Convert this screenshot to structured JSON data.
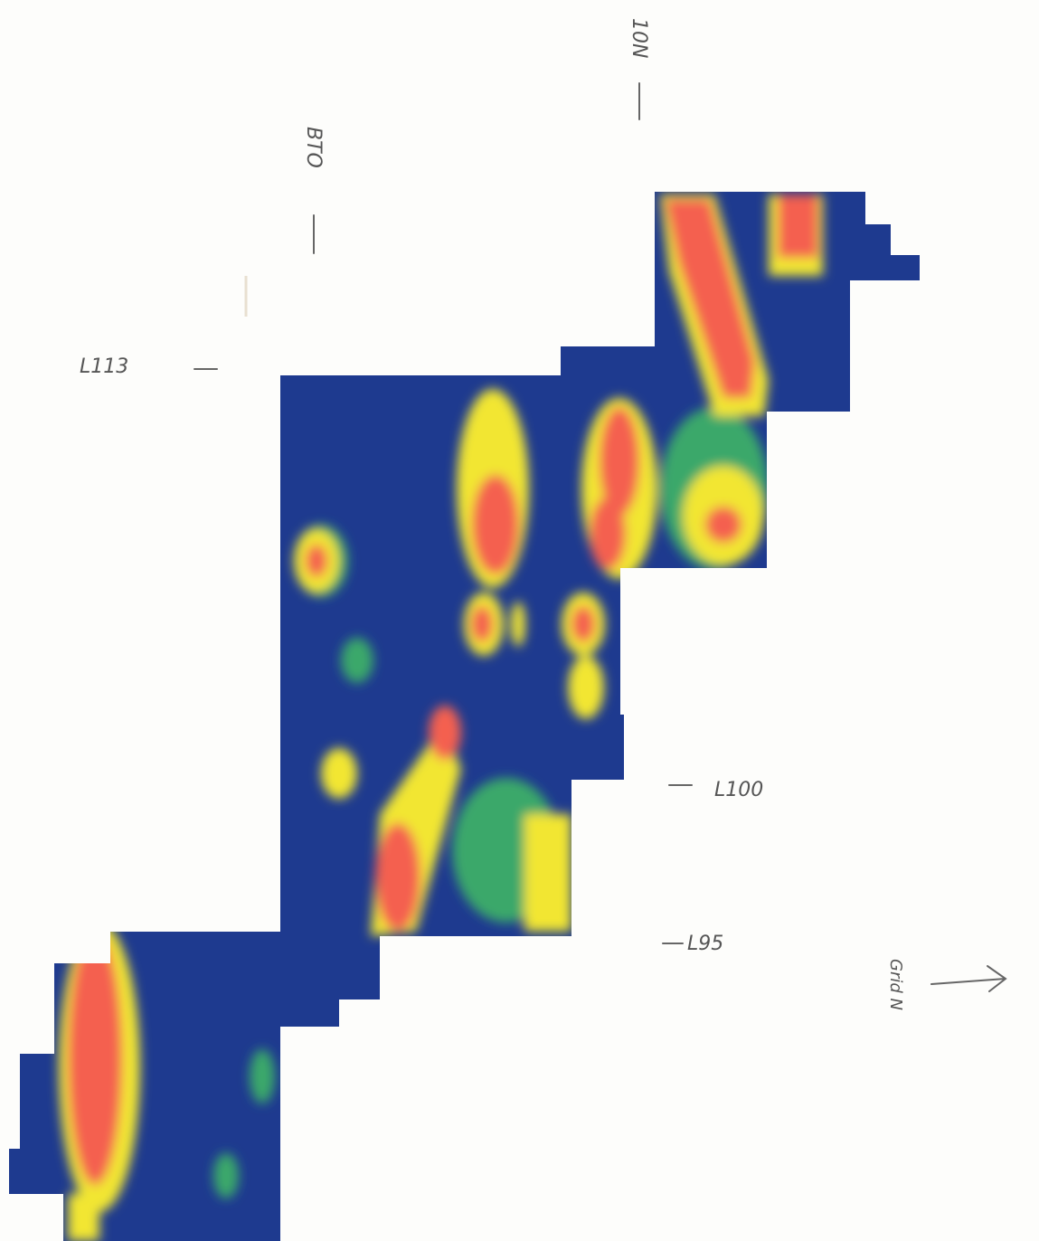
{
  "annotations": {
    "bto": "BTO",
    "grid_10n": "10N",
    "line_113": "L113",
    "line_100": "L100",
    "line_95": "L95",
    "north": "Grid N"
  }
}
